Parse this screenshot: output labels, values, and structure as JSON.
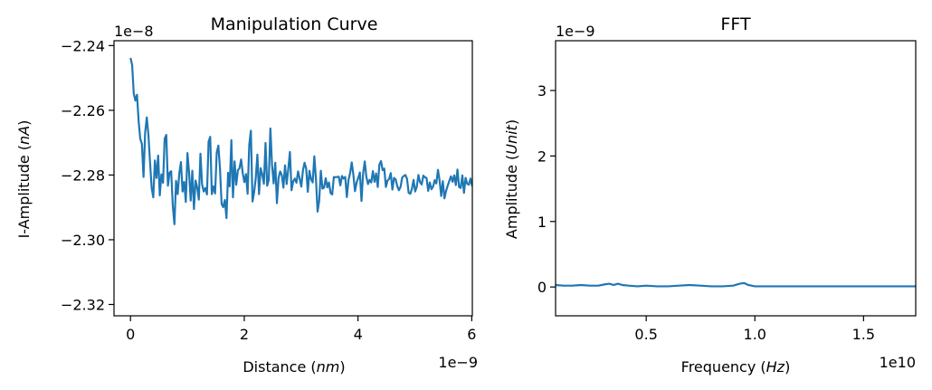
{
  "chart_data": [
    {
      "type": "line",
      "title": "Manipulation Curve",
      "xlabel": "Distance (nm)",
      "xlabel_prefix": "Distance (",
      "xlabel_unit": "nm",
      "xlabel_suffix": ")",
      "ylabel": "I-Amplitude (nA)",
      "ylabel_prefix": "I-Amplitude (",
      "ylabel_unit": "nA",
      "ylabel_suffix": ")",
      "x_offset_text": "1e−9",
      "y_offset_text": "1e−8",
      "xlim": [
        -0.29,
        6.01
      ],
      "ylim": [
        -2.3235,
        -2.2385
      ],
      "x_ticks": [
        0,
        2,
        4,
        6
      ],
      "x_tick_labels": [
        "0",
        "2",
        "4",
        "6"
      ],
      "y_ticks": [
        -2.32,
        -2.3,
        -2.28,
        -2.26,
        -2.24
      ],
      "y_tick_labels": [
        "−2.32",
        "−2.30",
        "−2.28",
        "−2.26",
        "−2.24"
      ],
      "color": "#1f77b4",
      "grid": false,
      "series": [
        {
          "x_start": 0.0,
          "x_step": 0.0286,
          "y": [
            -2.2438,
            -2.246,
            -2.2548,
            -2.257,
            -2.2552,
            -2.2634,
            -2.2688,
            -2.2704,
            -2.2806,
            -2.2669,
            -2.2622,
            -2.2675,
            -2.2759,
            -2.284,
            -2.2869,
            -2.2755,
            -2.2809,
            -2.274,
            -2.2863,
            -2.2798,
            -2.2824,
            -2.2688,
            -2.2676,
            -2.2833,
            -2.2793,
            -2.2788,
            -2.2896,
            -2.2952,
            -2.2818,
            -2.2859,
            -2.2795,
            -2.276,
            -2.2851,
            -2.2821,
            -2.2883,
            -2.2732,
            -2.2792,
            -2.2879,
            -2.2787,
            -2.2905,
            -2.2817,
            -2.2839,
            -2.2876,
            -2.2734,
            -2.2829,
            -2.2851,
            -2.284,
            -2.286,
            -2.2697,
            -2.2682,
            -2.2859,
            -2.2835,
            -2.2857,
            -2.2731,
            -2.2709,
            -2.2779,
            -2.2889,
            -2.2899,
            -2.2877,
            -2.2933,
            -2.2793,
            -2.2835,
            -2.2692,
            -2.2869,
            -2.2758,
            -2.283,
            -2.2785,
            -2.2779,
            -2.2752,
            -2.2794,
            -2.2822,
            -2.2797,
            -2.2858,
            -2.2707,
            -2.2663,
            -2.2882,
            -2.2853,
            -2.2809,
            -2.2737,
            -2.2859,
            -2.2779,
            -2.2798,
            -2.2827,
            -2.2701,
            -2.2833,
            -2.2815,
            -2.2656,
            -2.2769,
            -2.2826,
            -2.2762,
            -2.2887,
            -2.2809,
            -2.2789,
            -2.28,
            -2.2839,
            -2.277,
            -2.2828,
            -2.2781,
            -2.2729,
            -2.2847,
            -2.282,
            -2.2811,
            -2.2824,
            -2.2789,
            -2.2811,
            -2.2836,
            -2.2786,
            -2.2762,
            -2.278,
            -2.2852,
            -2.2787,
            -2.2813,
            -2.2823,
            -2.2742,
            -2.2812,
            -2.2913,
            -2.2879,
            -2.2787,
            -2.2842,
            -2.2839,
            -2.281,
            -2.2838,
            -2.2823,
            -2.2856,
            -2.286,
            -2.2806,
            -2.2807,
            -2.2806,
            -2.2805,
            -2.2832,
            -2.2803,
            -2.2811,
            -2.2806,
            -2.2868,
            -2.2816,
            -2.2794,
            -2.2761,
            -2.2799,
            -2.285,
            -2.2823,
            -2.2809,
            -2.2792,
            -2.288,
            -2.2795,
            -2.2758,
            -2.2806,
            -2.2828,
            -2.2815,
            -2.2823,
            -2.2788,
            -2.2821,
            -2.2795,
            -2.2837,
            -2.2768,
            -2.2757,
            -2.2785,
            -2.278,
            -2.2837,
            -2.2817,
            -2.2812,
            -2.2794,
            -2.2845,
            -2.2809,
            -2.2814,
            -2.2834,
            -2.2847,
            -2.2837,
            -2.2808,
            -2.2803,
            -2.28,
            -2.2812,
            -2.2855,
            -2.2858,
            -2.2843,
            -2.2815,
            -2.2851,
            -2.2836,
            -2.28,
            -2.2822,
            -2.2829,
            -2.2802,
            -2.2807,
            -2.2809,
            -2.2849,
            -2.2823,
            -2.2844,
            -2.2836,
            -2.2816,
            -2.2826,
            -2.2784,
            -2.2816,
            -2.2865,
            -2.2819,
            -2.2872,
            -2.2849,
            -2.2833,
            -2.2818,
            -2.2804,
            -2.2821,
            -2.2801,
            -2.2831,
            -2.2783,
            -2.2837,
            -2.284,
            -2.2801,
            -2.2855,
            -2.2809,
            -2.2827,
            -2.283,
            -2.2811,
            -2.2833,
            -2.2812,
            -2.2815,
            -2.2816,
            -2.2821,
            -2.2807,
            -2.282,
            -2.2824,
            -2.2833,
            -2.2822,
            -2.2825,
            -2.2826,
            -2.2809,
            -2.2834,
            -2.2826,
            -2.2827,
            -2.2817,
            -2.2823,
            -2.2822,
            -2.2827,
            -2.2824,
            -2.2829,
            -2.2836,
            -2.2813,
            -2.2824,
            -2.2823,
            -2.2821,
            -2.2814,
            -2.2829,
            -2.2828,
            -2.2825,
            -2.2831,
            -2.2819,
            -2.2822,
            -2.2832,
            -2.2821,
            -2.2834,
            -2.2827,
            -2.2824,
            -2.2816,
            -2.2821,
            -2.2831,
            -2.2825,
            -2.2829,
            -2.283,
            -2.2822,
            -2.2825,
            -2.2827,
            -2.2826,
            -2.2824,
            -2.2828,
            -2.2821,
            -2.2828,
            -2.2826,
            -2.2827,
            -2.2825,
            -2.2826,
            -2.2826,
            -2.2825,
            -2.2824,
            -2.2827,
            -2.2826,
            -2.2825,
            -2.2826,
            -2.2826,
            -2.2825
          ]
        }
      ]
    },
    {
      "type": "line",
      "title": "FFT",
      "xlabel": "Frequency (Hz)",
      "xlabel_prefix": "Frequency (",
      "xlabel_unit": "Hz",
      "xlabel_suffix": ")",
      "ylabel": "Amplitude (Unit)",
      "ylabel_prefix": "Amplitude (",
      "ylabel_unit": "Unit",
      "ylabel_suffix": ")",
      "x_offset_text": "1e10",
      "y_offset_text": "1e−9",
      "xlim": [
        0.083,
        1.74
      ],
      "ylim": [
        -0.44,
        3.76
      ],
      "x_ticks": [
        0.5,
        1.0,
        1.5
      ],
      "x_tick_labels": [
        "0.5",
        "1.0",
        "1.5"
      ],
      "y_ticks": [
        0,
        1,
        2,
        3
      ],
      "y_tick_labels": [
        "0",
        "1",
        "2",
        "3"
      ],
      "color": "#1f77b4",
      "grid": false,
      "series": [
        {
          "x": [
            0.083,
            0.12,
            0.16,
            0.2,
            0.24,
            0.28,
            0.31,
            0.33,
            0.35,
            0.37,
            0.39,
            0.42,
            0.46,
            0.5,
            0.55,
            0.6,
            0.65,
            0.7,
            0.75,
            0.8,
            0.85,
            0.9,
            0.93,
            0.95,
            0.97,
            1.0,
            1.05,
            1.1,
            1.2,
            1.3,
            1.4,
            1.5,
            1.6,
            1.7,
            1.74
          ],
          "y": [
            0.03,
            0.02,
            0.02,
            0.03,
            0.02,
            0.02,
            0.04,
            0.05,
            0.03,
            0.05,
            0.03,
            0.02,
            0.01,
            0.02,
            0.01,
            0.01,
            0.02,
            0.03,
            0.02,
            0.01,
            0.01,
            0.02,
            0.05,
            0.06,
            0.03,
            0.01,
            0.01,
            0.01,
            0.01,
            0.01,
            0.01,
            0.01,
            0.01,
            0.01,
            0.01
          ]
        }
      ]
    }
  ]
}
